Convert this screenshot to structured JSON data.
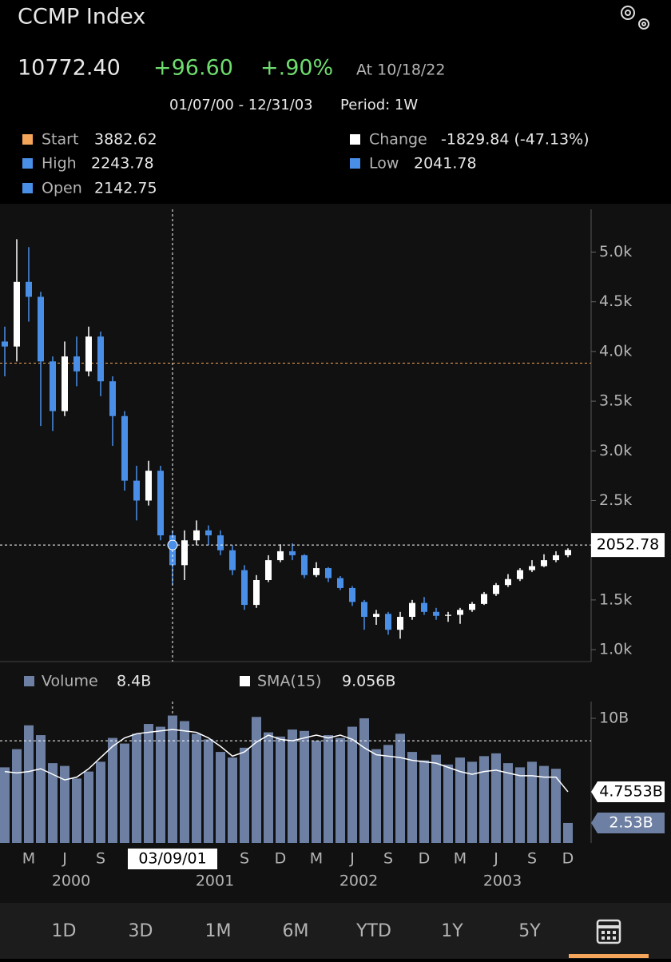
{
  "header": {
    "title": "CCMP Index",
    "price": "10772.40",
    "change": "+96.60",
    "change_pct": "+.90%",
    "as_of": "At 10/18/22",
    "range": "01/07/00 - 12/31/03",
    "period": "Period: 1W"
  },
  "legend": [
    {
      "label": "Start",
      "value": "3882.62",
      "color": "#f5a55a"
    },
    {
      "label": "Change",
      "value": "-1829.84 (-47.13%)",
      "color": "#ffffff"
    },
    {
      "label": "High",
      "value": "2243.78",
      "color": "#4a8fe7"
    },
    {
      "label": "Low",
      "value": "2041.78",
      "color": "#4a8fe7"
    },
    {
      "label": "Open",
      "value": "2142.75",
      "color": "#4a8fe7"
    }
  ],
  "volume_legend": [
    {
      "label": "Volume",
      "value": "8.4B",
      "color": "#6d7fa2"
    },
    {
      "label": "SMA(15)",
      "value": "9.056B",
      "color": "#ffffff"
    }
  ],
  "chart_data": [
    {
      "type": "candlestick",
      "x": [
        "2000-01",
        "2000-02",
        "2000-03",
        "2000-04",
        "2000-05",
        "2000-06",
        "2000-07",
        "2000-08",
        "2000-09",
        "2000-10",
        "2000-11",
        "2000-12",
        "2001-01",
        "2001-02",
        "2001-03",
        "2001-04",
        "2001-05",
        "2001-06",
        "2001-07",
        "2001-08",
        "2001-09",
        "2001-10",
        "2001-11",
        "2001-12",
        "2002-01",
        "2002-02",
        "2002-03",
        "2002-04",
        "2002-05",
        "2002-06",
        "2002-07",
        "2002-08",
        "2002-09",
        "2002-10",
        "2002-11",
        "2002-12",
        "2003-01",
        "2003-02",
        "2003-03",
        "2003-04",
        "2003-05",
        "2003-06",
        "2003-07",
        "2003-08",
        "2003-09",
        "2003-10",
        "2003-11",
        "2003-12"
      ],
      "open": [
        4100,
        4050,
        4700,
        4550,
        3900,
        3400,
        3950,
        3800,
        4150,
        3700,
        3350,
        2700,
        2500,
        2800,
        2150,
        1850,
        2100,
        2200,
        2150,
        2000,
        1800,
        1450,
        1700,
        1900,
        1990,
        1950,
        1750,
        1820,
        1720,
        1620,
        1480,
        1330,
        1360,
        1200,
        1330,
        1470,
        1380,
        1340,
        1350,
        1400,
        1460,
        1560,
        1650,
        1710,
        1800,
        1840,
        1900,
        1950
      ],
      "high": [
        4250,
        5130,
        5050,
        4600,
        3950,
        4100,
        4150,
        4250,
        4200,
        3750,
        3400,
        2850,
        2900,
        2850,
        2200,
        2200,
        2300,
        2250,
        2200,
        2050,
        1850,
        1750,
        1950,
        2060,
        2070,
        1960,
        1880,
        1830,
        1740,
        1640,
        1500,
        1400,
        1380,
        1380,
        1500,
        1530,
        1420,
        1380,
        1420,
        1480,
        1580,
        1670,
        1760,
        1820,
        1900,
        1960,
        1990,
        2020
      ],
      "low": [
        3750,
        3900,
        4300,
        3250,
        3200,
        3350,
        3650,
        3750,
        3550,
        3050,
        2600,
        2300,
        2450,
        2100,
        1650,
        1700,
        2050,
        2050,
        1950,
        1750,
        1400,
        1420,
        1680,
        1880,
        1900,
        1720,
        1730,
        1680,
        1600,
        1440,
        1200,
        1250,
        1150,
        1110,
        1300,
        1350,
        1300,
        1280,
        1260,
        1380,
        1450,
        1540,
        1630,
        1690,
        1780,
        1830,
        1880,
        1930
      ],
      "close": [
        4050,
        4700,
        4550,
        3900,
        3400,
        3950,
        3800,
        4150,
        3700,
        3350,
        2700,
        2500,
        2800,
        2150,
        1850,
        2100,
        2200,
        2150,
        2000,
        1800,
        1450,
        1700,
        1900,
        1990,
        1950,
        1750,
        1820,
        1720,
        1620,
        1480,
        1330,
        1360,
        1200,
        1330,
        1470,
        1380,
        1340,
        1350,
        1400,
        1460,
        1560,
        1650,
        1710,
        1800,
        1840,
        1900,
        1950,
        2003
      ],
      "up_color": "#ffffff",
      "down_color": "#4a8fe7",
      "ylim": [
        880,
        5430
      ],
      "yticks": [
        {
          "value": 1000,
          "label": "1.0k"
        },
        {
          "value": 1500,
          "label": "1.5k"
        },
        {
          "value": 2000,
          "label": "2.0k"
        },
        {
          "value": 2500,
          "label": "2.5k"
        },
        {
          "value": 3000,
          "label": "3.0k"
        },
        {
          "value": 3500,
          "label": "3.5k"
        },
        {
          "value": 4000,
          "label": "4.0k"
        },
        {
          "value": 4500,
          "label": "4.5k"
        },
        {
          "value": 5000,
          "label": "5.0k"
        }
      ],
      "start_line": 3882.62,
      "crosshair": {
        "x": "2001-03",
        "value": 2052.78,
        "label": "03/09/01"
      }
    },
    {
      "type": "bar",
      "x": [
        "2000-01",
        "2000-02",
        "2000-03",
        "2000-04",
        "2000-05",
        "2000-06",
        "2000-07",
        "2000-08",
        "2000-09",
        "2000-10",
        "2000-11",
        "2000-12",
        "2001-01",
        "2001-02",
        "2001-03",
        "2001-04",
        "2001-05",
        "2001-06",
        "2001-07",
        "2001-08",
        "2001-09",
        "2001-10",
        "2001-11",
        "2001-12",
        "2002-01",
        "2002-02",
        "2002-03",
        "2002-04",
        "2002-05",
        "2002-06",
        "2002-07",
        "2002-08",
        "2002-09",
        "2002-10",
        "2002-11",
        "2002-12",
        "2003-01",
        "2003-02",
        "2003-03",
        "2003-04",
        "2003-05",
        "2003-06",
        "2003-07",
        "2003-08",
        "2003-09",
        "2003-10",
        "2003-11",
        "2003-12"
      ],
      "series": [
        {
          "name": "Volume",
          "color": "#6d7fa2",
          "values": [
            6.5,
            7.8,
            9.5,
            8.8,
            6.8,
            6.6,
            5.7,
            6.2,
            6.9,
            8.6,
            8.2,
            8.9,
            9.6,
            9.4,
            10.2,
            9.8,
            8.9,
            8.5,
            7.6,
            7.2,
            7.9,
            10.1,
            9.0,
            8.7,
            9.2,
            9.1,
            8.4,
            8.8,
            8.6,
            9.4,
            10.0,
            7.8,
            8.1,
            8.9,
            7.6,
            7.0,
            7.4,
            6.7,
            7.2,
            6.9,
            7.3,
            7.5,
            6.8,
            6.5,
            6.9,
            6.6,
            6.4,
            2.53
          ],
          "value_labels": [
            null,
            null,
            null,
            null,
            null,
            null,
            null,
            null,
            null,
            null,
            null,
            null,
            null,
            null,
            null,
            null,
            null,
            null,
            null,
            null,
            null,
            null,
            null,
            null,
            null,
            null,
            null,
            null,
            null,
            null,
            null,
            null,
            null,
            null,
            null,
            null,
            null,
            null,
            null,
            null,
            null,
            null,
            null,
            null,
            null,
            null,
            null,
            "2.53B"
          ]
        },
        {
          "name": "SMA(15)",
          "color": "#ffffff",
          "values": [
            6.2,
            6.1,
            6.2,
            6.4,
            6.0,
            5.6,
            5.8,
            6.4,
            7.2,
            8.0,
            8.6,
            8.9,
            9.0,
            9.1,
            9.2,
            9.1,
            9.0,
            8.6,
            8.0,
            7.3,
            7.6,
            8.3,
            8.8,
            8.5,
            8.4,
            8.6,
            8.8,
            8.6,
            8.8,
            8.5,
            7.9,
            7.4,
            7.3,
            7.2,
            7.0,
            6.9,
            6.8,
            6.5,
            6.2,
            6.0,
            6.2,
            6.3,
            6.1,
            5.9,
            5.9,
            5.8,
            5.8,
            4.7553
          ],
          "value_labels": [
            null,
            null,
            null,
            null,
            null,
            null,
            null,
            null,
            null,
            null,
            null,
            null,
            null,
            null,
            null,
            null,
            null,
            null,
            null,
            null,
            null,
            null,
            null,
            null,
            null,
            null,
            null,
            null,
            null,
            null,
            null,
            null,
            null,
            null,
            null,
            null,
            null,
            null,
            null,
            null,
            null,
            null,
            null,
            null,
            null,
            null,
            null,
            "4.7553B"
          ]
        }
      ],
      "ylim": [
        1.1,
        11.2
      ],
      "yticks": [
        {
          "value": 10,
          "label": "10B"
        }
      ],
      "crosshair_value": 8.4,
      "xticks": [
        {
          "value": "2000-03",
          "label": "M"
        },
        {
          "value": "2000-06",
          "label": "J"
        },
        {
          "value": "2000-09",
          "label": "S"
        },
        {
          "value": "2001-09",
          "label": "S"
        },
        {
          "value": "2001-12",
          "label": "D"
        },
        {
          "value": "2002-03",
          "label": "M"
        },
        {
          "value": "2002-06",
          "label": "J"
        },
        {
          "value": "2002-09",
          "label": "S"
        },
        {
          "value": "2002-12",
          "label": "D"
        },
        {
          "value": "2003-03",
          "label": "M"
        },
        {
          "value": "2003-06",
          "label": "J"
        },
        {
          "value": "2003-09",
          "label": "S"
        },
        {
          "value": "2003-12",
          "label": "D"
        }
      ],
      "year_labels": [
        {
          "value": "2000-06",
          "label": "2000"
        },
        {
          "value": "2001-06",
          "label": "2001"
        },
        {
          "value": "2002-06",
          "label": "2002"
        },
        {
          "value": "2003-06",
          "label": "2003"
        }
      ]
    }
  ],
  "tabs": [
    "1D",
    "3D",
    "1M",
    "6M",
    "YTD",
    "1Y",
    "5Y"
  ]
}
